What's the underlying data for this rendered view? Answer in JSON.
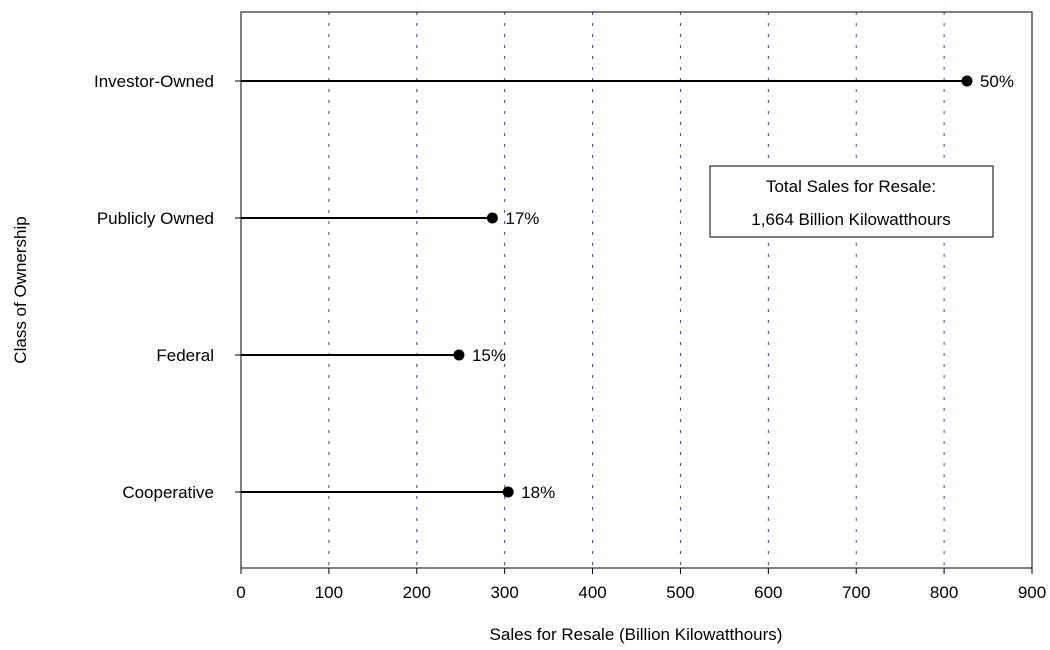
{
  "chart_data": {
    "type": "dot",
    "orientation": "horizontal",
    "xlabel": "Sales for Resale (Billion Kilowatthours)",
    "ylabel": "Class of Ownership",
    "xlim": [
      0,
      900
    ],
    "xticks": [
      "0",
      "100",
      "200",
      "300",
      "400",
      "500",
      "600",
      "700",
      "800",
      "900"
    ],
    "grid": "vertical dotted",
    "categories": [
      "Investor-Owned",
      "Publicly Owned",
      "Federal",
      "Cooperative"
    ],
    "values": [
      826,
      286,
      248,
      304
    ],
    "labels": [
      "50%",
      "17%",
      "15%",
      "18%"
    ],
    "annotation": {
      "line1": "Total Sales for Resale:",
      "line2": "1,664 Billion Kilowatthours"
    }
  },
  "colors": {
    "axis": "#000000",
    "grid": "#3b3bb0",
    "marker": "#000000"
  }
}
